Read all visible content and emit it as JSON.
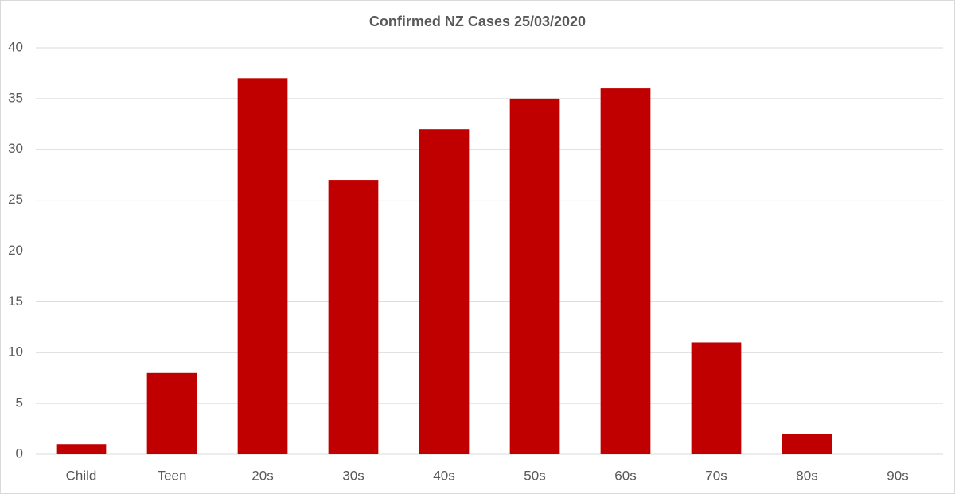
{
  "chart_data": {
    "type": "bar",
    "title": "Confirmed NZ Cases 25/03/2020",
    "categories": [
      "Child",
      "Teen",
      "20s",
      "30s",
      "40s",
      "50s",
      "60s",
      "70s",
      "80s",
      "90s"
    ],
    "values": [
      1,
      8,
      37,
      27,
      32,
      35,
      36,
      11,
      2,
      0
    ],
    "color": "#c00000",
    "ylim": [
      0,
      40
    ],
    "yticks": [
      0,
      5,
      10,
      15,
      20,
      25,
      30,
      35,
      40
    ],
    "grid": true
  }
}
